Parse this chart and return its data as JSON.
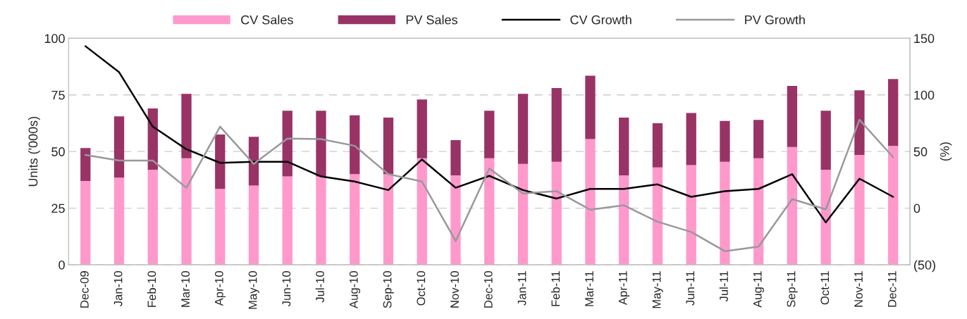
{
  "chart_data": {
    "type": "bar",
    "stacked": true,
    "ylabel": "Units ('000s)",
    "y2label": "(%)",
    "categories": [
      "Dec-09",
      "Jan-10",
      "Feb-10",
      "Mar-10",
      "Apr-10",
      "May-10",
      "Jun-10",
      "Jul-10",
      "Aug-10",
      "Sep-10",
      "Oct-10",
      "Nov-10",
      "Dec-10",
      "Jan-11",
      "Feb-11",
      "Mar-11",
      "Apr-11",
      "May-11",
      "Jun-11",
      "Jul-11",
      "Aug-11",
      "Sep-11",
      "Oct-11",
      "Nov-11",
      "Dec-11"
    ],
    "series": [
      {
        "name": "CV Sales",
        "color": "#ff99cc",
        "values": [
          37,
          38.5,
          42,
          47,
          33.5,
          35,
          39,
          39,
          40,
          40,
          47,
          39.5,
          47,
          44.5,
          45.5,
          55.5,
          39.5,
          43,
          44,
          45.5,
          47,
          52,
          42,
          48.5,
          52.5
        ]
      },
      {
        "name": "PV Sales",
        "color": "#993366",
        "values": [
          14.5,
          27,
          27,
          28.5,
          24,
          21.5,
          29,
          29,
          26,
          25,
          26,
          15.5,
          21,
          31,
          32.5,
          28,
          25.5,
          19.5,
          23,
          18,
          17,
          27,
          26,
          28.5,
          29.5
        ]
      },
      {
        "name": "CV Growth",
        "type": "line",
        "axis": "y2",
        "color": "#000000",
        "values": [
          143,
          120,
          72,
          52,
          40,
          41,
          41,
          28,
          23.5,
          16,
          43,
          18,
          28.5,
          16,
          8.5,
          17,
          17,
          21,
          10,
          15,
          17,
          30,
          -12.6,
          26,
          10
        ]
      },
      {
        "name": "PV Growth",
        "type": "line",
        "axis": "y2",
        "color": "#999999",
        "values": [
          47,
          42,
          42,
          18,
          72,
          39,
          61.5,
          61,
          55,
          30,
          23.5,
          -29,
          35,
          13,
          15,
          -1.4,
          2.5,
          -12,
          -21,
          -38,
          -34,
          8,
          -1,
          78,
          45
        ]
      }
    ],
    "ylim": [
      0,
      100
    ],
    "yticks": [
      0,
      25,
      50,
      75,
      100
    ],
    "y2lim": [
      -50,
      150
    ],
    "y2ticks": [
      {
        "value": -50,
        "label": "(50)"
      },
      0,
      50,
      100,
      150
    ],
    "grid": "y",
    "legend": "top"
  }
}
